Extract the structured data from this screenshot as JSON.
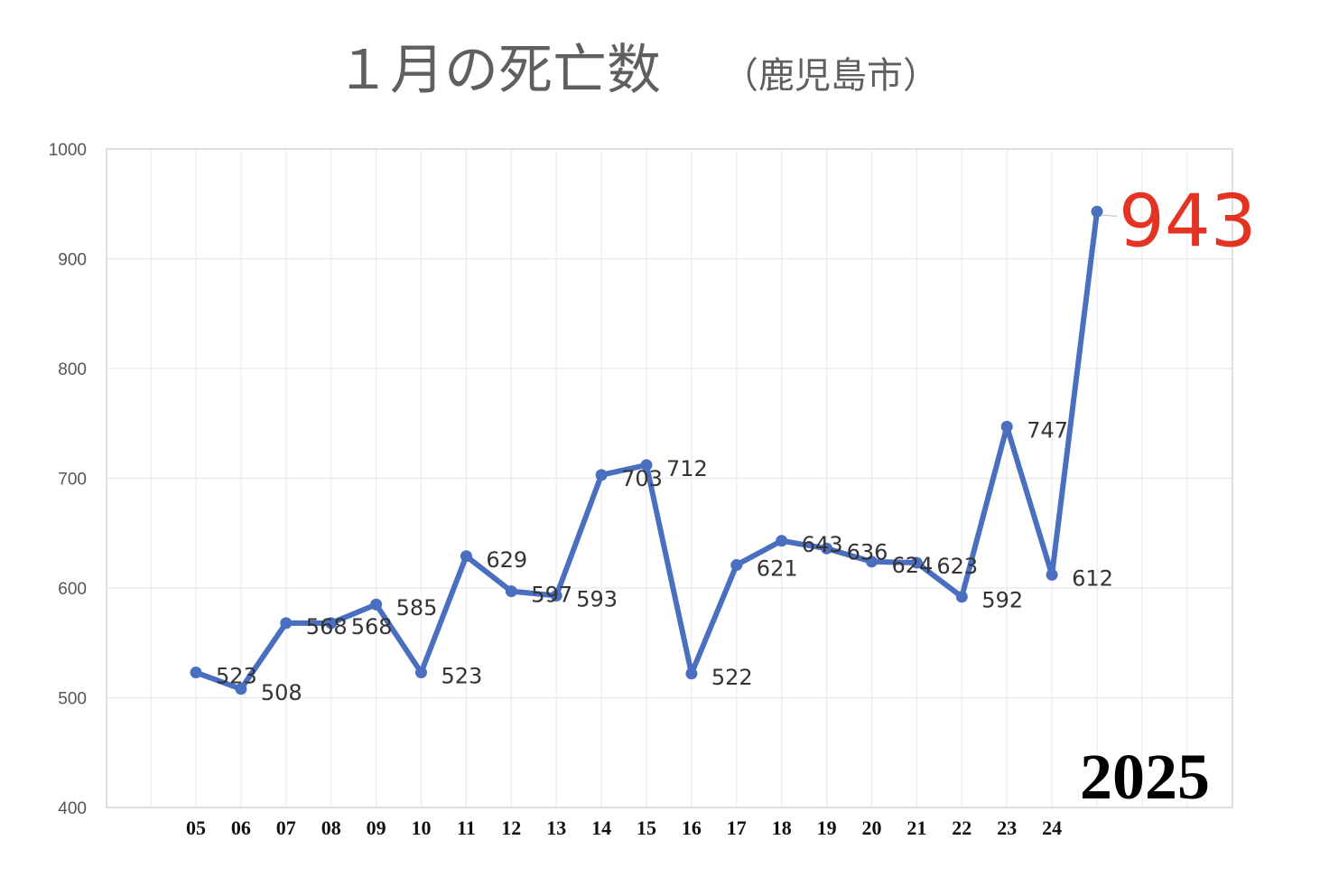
{
  "chart_data": {
    "type": "line",
    "title": "１月の死亡数",
    "subtitle": "（鹿児島市）",
    "annotation": "2025",
    "categories": [
      "05",
      "06",
      "07",
      "08",
      "09",
      "10",
      "11",
      "12",
      "13",
      "14",
      "15",
      "16",
      "17",
      "18",
      "19",
      "20",
      "21",
      "22",
      "23",
      "24",
      ""
    ],
    "values": [
      523,
      508,
      568,
      568,
      585,
      523,
      629,
      597,
      593,
      703,
      712,
      522,
      621,
      643,
      636,
      624,
      623,
      592,
      747,
      612,
      943
    ],
    "data_labels": [
      "523",
      "508",
      "568",
      "568",
      "585",
      "523",
      "629",
      "597",
      "593",
      "703",
      "712",
      "522",
      "621",
      "643",
      "636",
      "624",
      "623",
      "592",
      "747",
      "612",
      "943"
    ],
    "ylim": [
      400,
      1000
    ],
    "yticks": [
      "400",
      "500",
      "600",
      "700",
      "800",
      "900",
      "1000"
    ],
    "grid": true,
    "line_color": "#4a6fc0",
    "highlight_color": "#e53323"
  }
}
